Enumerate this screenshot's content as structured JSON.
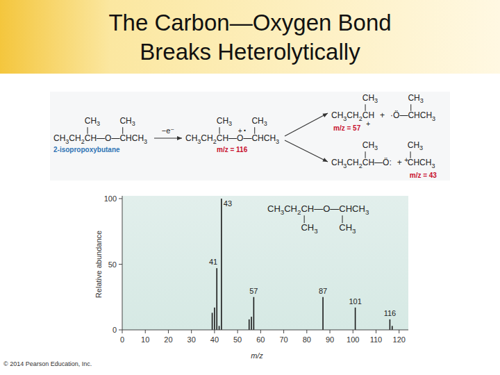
{
  "slide": {
    "title": [
      "The Carbon—Oxygen Bond",
      "Breaks Heterolytically"
    ],
    "copyright": "© 2014 Pearson Education, Inc."
  },
  "scheme": {
    "reactant": {
      "main": "CH3CH2CH—O—CHCH3",
      "branches": [
        "CH3",
        "CH3"
      ],
      "name": "2-isopropoxybutane"
    },
    "reagent": "−e⁻",
    "radical_cation": {
      "main": "CH3CH2CH—O—CHCH3",
      "branches": [
        "CH3",
        "CH3"
      ],
      "charge": "+",
      "radical": "·",
      "mz": "m/z = 116"
    },
    "products": [
      {
        "fragments": [
          {
            "main": "CH3CH2CH",
            "branch": "CH3",
            "charge": "+"
          },
          {
            "main": "·Ö—CHCH3",
            "branch": "CH3"
          }
        ],
        "plus": "+",
        "mz": "m/z = 57"
      },
      {
        "fragments": [
          {
            "main": "CH3CH2CH—Ö:",
            "branch": "CH3"
          },
          {
            "main": "CHCH3",
            "branch": "CH3",
            "charge": "+"
          }
        ],
        "plus": "+",
        "mz": "m/z = 43"
      }
    ]
  },
  "chart_inset": {
    "main": "CH3CH2CH—O—CHCH3",
    "branches": [
      "CH3",
      "CH3"
    ]
  },
  "chart_data": {
    "type": "bar",
    "x": [
      39,
      40,
      41,
      42,
      43,
      55,
      56,
      57,
      87,
      101,
      116,
      117
    ],
    "values": [
      13,
      17,
      47,
      3,
      100,
      8,
      10,
      25,
      25,
      17,
      8,
      3
    ],
    "color": "#1a1a1a",
    "xlim": [
      0,
      124
    ],
    "xticks": [
      0,
      10,
      20,
      30,
      40,
      50,
      60,
      70,
      80,
      90,
      100,
      110,
      120
    ],
    "ylim": [
      0,
      100
    ],
    "yticks": [
      0,
      50,
      100
    ],
    "x_label": "m/z",
    "y_label": "Relative abundance",
    "annotations": [
      {
        "x": 43,
        "y": 100,
        "text": "43"
      },
      {
        "x": 41,
        "y": 47,
        "text": "41"
      },
      {
        "x": 57,
        "y": 25,
        "text": "57"
      },
      {
        "x": 87,
        "y": 25,
        "text": "87"
      },
      {
        "x": 101,
        "y": 17,
        "text": "101"
      },
      {
        "x": 116,
        "y": 8,
        "text": "116"
      }
    ]
  }
}
